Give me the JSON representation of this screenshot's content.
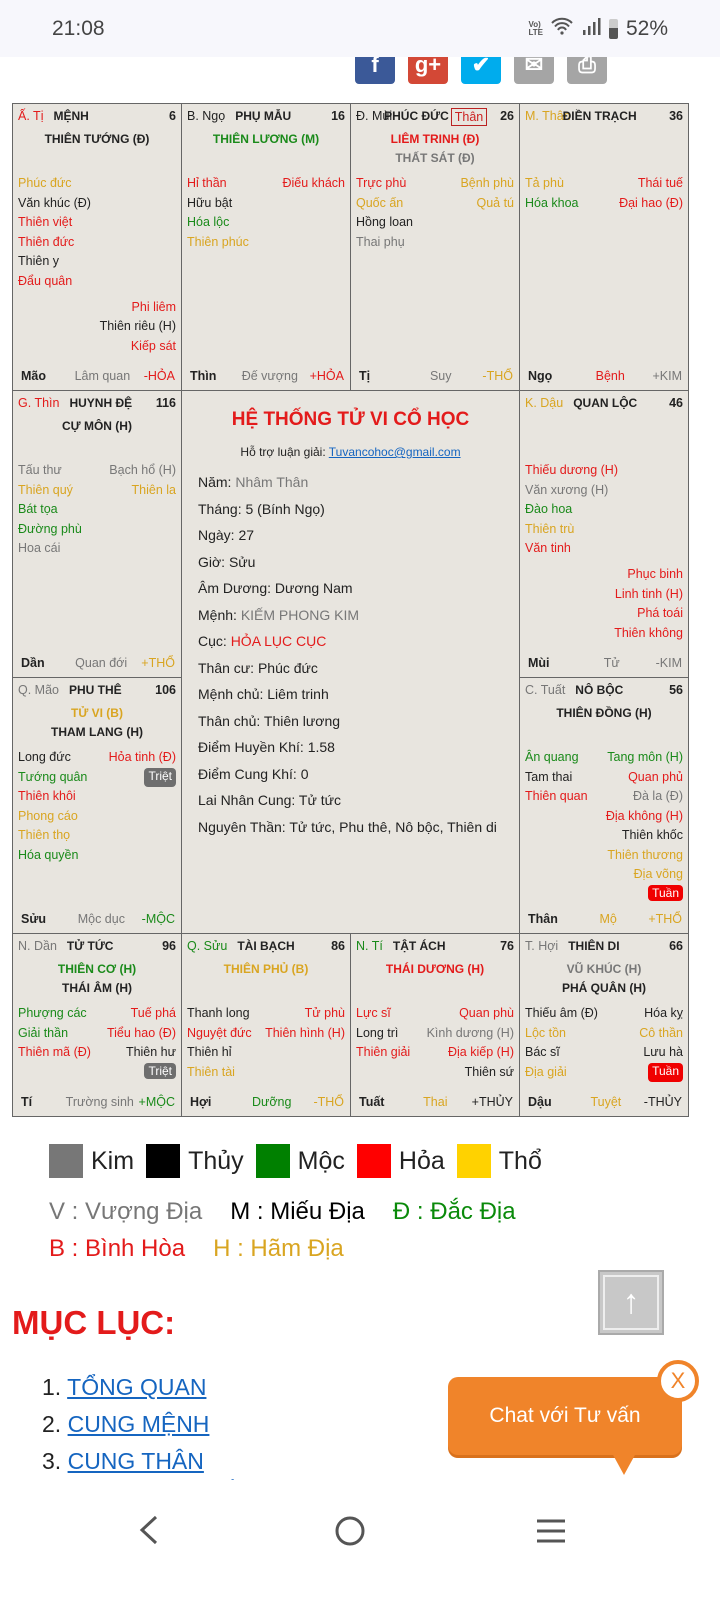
{
  "status": {
    "time": "21:08",
    "lte": "Vo) LTE",
    "battery": "52%"
  },
  "social": [
    {
      "icon": "facebook-icon",
      "glyph": "f",
      "color": "#3b5998"
    },
    {
      "icon": "google-plus-icon",
      "glyph": "g+",
      "color": "#d34836"
    },
    {
      "icon": "twitter-icon",
      "glyph": "✔",
      "color": "#00aced"
    },
    {
      "icon": "mail-icon",
      "glyph": "✉",
      "color": "#a5a5a5"
    },
    {
      "icon": "print-icon",
      "glyph": "⎙",
      "color": "#a5a5a5"
    }
  ],
  "colors": {
    "r": "#e31b1b",
    "g": "#1a8a1a",
    "y": "#d9a521",
    "k": "#222222",
    "s": "#777777",
    "badge_gray": "#6e6e6e",
    "badge_red": "#f00000"
  },
  "palaces": [
    {
      "can": "Ấ. Tị",
      "cc": "r",
      "name": "MỆNH",
      "num": "6",
      "majors": [
        [
          "THIÊN TƯỚNG (Đ)",
          "k"
        ]
      ],
      "rows": [
        [
          [
            "Phúc đức",
            "y"
          ]
        ],
        [
          [
            "Văn khúc (Đ)",
            "k"
          ]
        ],
        [
          [
            "Thiên việt",
            "r"
          ]
        ],
        [
          [
            "Thiên đức",
            "r"
          ]
        ],
        [
          [
            "Thiên y",
            "k"
          ]
        ],
        [
          [
            "Đẩu quân",
            "r"
          ]
        ]
      ],
      "lower": [
        [
          "Phi liêm",
          "r"
        ],
        [
          "Thiên riêu (H)",
          "k"
        ],
        [
          "Kiếp sát",
          "r"
        ]
      ],
      "foot": [
        "Mão",
        "Lâm quan",
        "s",
        "-HỎA",
        "r"
      ]
    },
    {
      "can": "B. Ngọ",
      "cc": "k",
      "name": "PHỤ MẪU",
      "num": "16",
      "majors": [
        [
          "THIÊN LƯƠNG (M)",
          "g"
        ]
      ],
      "rows": [
        [
          [
            "Hỉ thần",
            "r"
          ],
          [
            "Điếu khách",
            "r"
          ]
        ],
        [
          [
            "Hữu bật",
            "k"
          ]
        ],
        [
          [
            "Hóa lộc",
            "g"
          ]
        ],
        [
          [
            "Thiên phúc",
            "y"
          ]
        ]
      ],
      "lower": [],
      "foot": [
        "Thìn",
        "Đế vượng",
        "s",
        "+HỎA",
        "r"
      ]
    },
    {
      "can": "Đ. Mùi",
      "cc": "k",
      "name": "PHÚC ĐỨC",
      "than": "Thân",
      "num": "26",
      "majors": [
        [
          "LIÊM TRINH (Đ)",
          "r"
        ],
        [
          "THẤT SÁT (Đ)",
          "s"
        ]
      ],
      "rows": [
        [
          [
            "Trực phù",
            "r"
          ],
          [
            "Bệnh phù",
            "y"
          ]
        ],
        [
          [
            "Quốc ấn",
            "y"
          ],
          [
            "Quả tú",
            "y"
          ]
        ],
        [
          [
            "Hồng loan",
            "k"
          ]
        ],
        [
          [
            "Thai phụ",
            "s"
          ]
        ]
      ],
      "lower": [],
      "foot": [
        "Tị",
        "Suy",
        "s",
        "-THỔ",
        "y"
      ]
    },
    {
      "can": "M. Thân",
      "cc": "y",
      "name": "ĐIỀN TRẠCH",
      "num": "36",
      "majors": [],
      "rows": [
        [
          [
            "Tả phù",
            "y"
          ],
          [
            "Thái tuế",
            "r"
          ]
        ],
        [
          [
            "Hóa khoa",
            "g"
          ],
          [
            "Đại hao (Đ)",
            "r"
          ]
        ]
      ],
      "lower": [],
      "foot": [
        "Ngọ",
        "Bệnh",
        "r",
        "+KIM",
        "s"
      ]
    },
    {
      "can": "G. Thìn",
      "cc": "r",
      "name": "HUYNH ĐỆ",
      "num": "116",
      "majors": [
        [
          "CỰ MÔN (H)",
          "k"
        ]
      ],
      "rows": [
        [
          [
            "Tấu thư",
            "s"
          ],
          [
            "Bạch hổ (H)",
            "s"
          ]
        ],
        [
          [
            "Thiên quý",
            "y"
          ],
          [
            "Thiên la",
            "y"
          ]
        ],
        [
          [
            "Bát tọa",
            "g"
          ]
        ],
        [
          [
            "Đường phù",
            "g"
          ]
        ],
        [
          [
            "Hoa cái",
            "s"
          ]
        ]
      ],
      "lower": [],
      "foot": [
        "Dần",
        "Quan đới",
        "s",
        "+THỔ",
        "y"
      ]
    },
    {
      "can": "K. Dậu",
      "cc": "y",
      "name": "QUAN LỘC",
      "num": "46",
      "majors": [],
      "rows": [
        [
          [
            "Thiếu dương (H)",
            "r"
          ]
        ],
        [
          [
            "Văn xương (H)",
            "s"
          ]
        ],
        [
          [
            "Đào hoa",
            "g"
          ]
        ],
        [
          [
            "Thiên trù",
            "y"
          ]
        ],
        [
          [
            "Văn tinh",
            "r"
          ]
        ]
      ],
      "lower": [
        [
          "Phục binh",
          "r"
        ],
        [
          "Linh tinh (H)",
          "r"
        ],
        [
          "Phá toái",
          "r"
        ],
        [
          "Thiên không",
          "r"
        ]
      ],
      "foot": [
        "Mùi",
        "Tử",
        "s",
        "-KIM",
        "s"
      ]
    },
    {
      "can": "Q. Mão",
      "cc": "s",
      "name": "PHU THÊ",
      "num": "106",
      "majors": [
        [
          "TỬ VI (B)",
          "y"
        ],
        [
          "THAM LANG (H)",
          "k"
        ]
      ],
      "rows": [
        [
          [
            "Long đức",
            "k"
          ],
          [
            "Hỏa tinh (Đ)",
            "r"
          ]
        ],
        [
          [
            "Tướng quân",
            "g"
          ],
          [
            "Triệt",
            "badge_gray"
          ]
        ],
        [
          [
            "Thiên khôi",
            "r"
          ]
        ],
        [
          [
            "Phong cáo",
            "y"
          ]
        ],
        [
          [
            "Thiên thọ",
            "y"
          ]
        ],
        [
          [
            "Hóa quyền",
            "g"
          ]
        ]
      ],
      "lower": [],
      "foot": [
        "Sửu",
        "Mộc dục",
        "s",
        "-MỘC",
        "g"
      ]
    },
    {
      "can": "C. Tuất",
      "cc": "s",
      "name": "NÔ BỘC",
      "num": "56",
      "majors": [
        [
          "THIÊN ĐỒNG (H)",
          "k"
        ]
      ],
      "rows": [
        [
          [
            "Ân quang",
            "g"
          ],
          [
            "Tang môn (H)",
            "g"
          ]
        ],
        [
          [
            "Tam thai",
            "k"
          ],
          [
            "Quan phủ",
            "r"
          ]
        ],
        [
          [
            "Thiên quan",
            "r"
          ],
          [
            "Đà la (Đ)",
            "s"
          ]
        ],
        [
          null,
          [
            "Địa không (H)",
            "r"
          ]
        ],
        [
          null,
          [
            "Thiên khốc",
            "k"
          ]
        ],
        [
          null,
          [
            "Thiên thương",
            "y"
          ]
        ],
        [
          null,
          [
            "Địa võng",
            "y"
          ]
        ],
        [
          null,
          [
            "Tuần",
            "badge_red"
          ]
        ]
      ],
      "lower": [],
      "foot": [
        "Thân",
        "Mộ",
        "y",
        "+THỔ",
        "y"
      ]
    },
    {
      "can": "N. Dần",
      "cc": "s",
      "name": "TỬ TỨC",
      "num": "96",
      "majors": [
        [
          "THIÊN CƠ (H)",
          "g"
        ],
        [
          "THÁI ÂM (H)",
          "k"
        ]
      ],
      "rows": [
        [
          [
            "Phượng các",
            "g"
          ],
          [
            "Tuế phá",
            "r"
          ]
        ],
        [
          [
            "Giải thần",
            "g"
          ],
          [
            "Tiểu hao (Đ)",
            "r"
          ]
        ],
        [
          [
            "Thiên mã (Đ)",
            "r"
          ],
          [
            "Thiên hư",
            "k"
          ]
        ],
        [
          null,
          [
            "Triệt",
            "badge_gray"
          ]
        ]
      ],
      "lower": [],
      "foot": [
        "Tí",
        "Trường sinh",
        "s",
        "+MỘC",
        "g"
      ]
    },
    {
      "can": "Q. Sửu",
      "cc": "g",
      "name": "TÀI BẠCH",
      "num": "86",
      "majors": [
        [
          "THIÊN PHỦ (B)",
          "y"
        ]
      ],
      "rows": [
        [
          [
            "Thanh long",
            "k"
          ],
          [
            "Tử phù",
            "r"
          ]
        ],
        [
          [
            "Nguyệt đức",
            "r"
          ],
          [
            "Thiên hình (H)",
            "r"
          ]
        ],
        [
          [
            "Thiên hỉ",
            "k"
          ]
        ],
        [
          [
            "Thiên tài",
            "y"
          ]
        ]
      ],
      "lower": [],
      "foot": [
        "Hợi",
        "Dưỡng",
        "g",
        "-THỔ",
        "y"
      ]
    },
    {
      "can": "N. Tí",
      "cc": "g",
      "name": "TẬT ÁCH",
      "num": "76",
      "majors": [
        [
          "THÁI DƯƠNG (H)",
          "r"
        ]
      ],
      "rows": [
        [
          [
            "Lực sĩ",
            "r"
          ],
          [
            "Quan phù",
            "r"
          ]
        ],
        [
          [
            "Long trì",
            "k"
          ],
          [
            "Kình dương (H)",
            "s"
          ]
        ],
        [
          [
            "Thiên giải",
            "r"
          ],
          [
            "Địa kiếp (H)",
            "r"
          ]
        ],
        [
          null,
          [
            "Thiên sứ",
            "k"
          ]
        ]
      ],
      "lower": [],
      "foot": [
        "Tuất",
        "Thai",
        "y",
        "+THỦY",
        "k"
      ]
    },
    {
      "can": "T. Hợi",
      "cc": "s",
      "name": "THIÊN DI",
      "num": "66",
      "majors": [
        [
          "VŨ KHÚC (H)",
          "s"
        ],
        [
          "PHÁ QUÂN (H)",
          "k"
        ]
      ],
      "rows": [
        [
          [
            "Thiếu âm (Đ)",
            "k"
          ],
          [
            "Hóa kỵ",
            "k"
          ]
        ],
        [
          [
            "Lộc tồn",
            "y"
          ],
          [
            "Cô thần",
            "y"
          ]
        ],
        [
          [
            "Bác sĩ",
            "k"
          ],
          [
            "Lưu hà",
            "k"
          ]
        ],
        [
          [
            "Địa giải",
            "y"
          ],
          [
            "Tuần",
            "badge_red"
          ]
        ]
      ],
      "lower": [],
      "foot": [
        "Dậu",
        "Tuyệt",
        "y",
        "-THỦY",
        "k"
      ]
    }
  ],
  "center": {
    "title": "HỆ THỐNG TỬ VI CỔ HỌC",
    "support_label": "Hỗ trợ luận giải: ",
    "email": "Tuvancohoc@gmail.com",
    "lines": [
      [
        "Năm: ",
        "Nhâm Thân",
        "s"
      ],
      [
        "Tháng: 5 (Bính Ngọ)",
        "",
        ""
      ],
      [
        "Ngày: 27",
        "",
        ""
      ],
      [
        "Giờ: Sửu",
        "",
        ""
      ],
      [
        "Âm Dương: Dương Nam",
        "",
        ""
      ],
      [
        "Mệnh: ",
        "KIẾM PHONG KIM",
        "s"
      ],
      [
        "Cục: ",
        "HỎA LỤC CỤC",
        "r"
      ],
      [
        "Thân cư: Phúc đức",
        "",
        ""
      ],
      [
        "Mệnh chủ: Liêm trinh",
        "",
        ""
      ],
      [
        "Thân chủ: Thiên lương",
        "",
        ""
      ],
      [
        "Điểm Huyền Khí: 1.58",
        "",
        ""
      ],
      [
        "Điểm Cung Khí: 0",
        "",
        ""
      ],
      [
        "Lai Nhân Cung: Tử tức",
        "",
        ""
      ],
      [
        "Nguyên Thần: Tử tức, Phu thê, Nô bộc, Thiên di",
        "",
        ""
      ]
    ]
  },
  "legend": {
    "elements": [
      [
        "Kim",
        "#777777"
      ],
      [
        "Thủy",
        "#000000"
      ],
      [
        "Mộc",
        "#008000"
      ],
      [
        "Hỏa",
        "#ff0000"
      ],
      [
        "Thổ",
        "#ffd200"
      ]
    ],
    "row1": [
      [
        "V : Vượng Địa",
        "#777777"
      ],
      [
        "M : Miếu Địa",
        "#000000"
      ],
      [
        "Đ : Đắc Địa",
        "#0a8a0a"
      ]
    ],
    "row2": [
      [
        "B : Bình Hòa",
        "#e31b1b"
      ],
      [
        "H : Hãm Địa",
        "#d9a521"
      ]
    ]
  },
  "toc": {
    "title": "MỤC LỤC:",
    "items": [
      "TỔNG QUAN",
      "CUNG MỆNH",
      "CUNG THÂN"
    ]
  },
  "chat": {
    "label": "Chat với Tư vấn",
    "close": "X"
  }
}
